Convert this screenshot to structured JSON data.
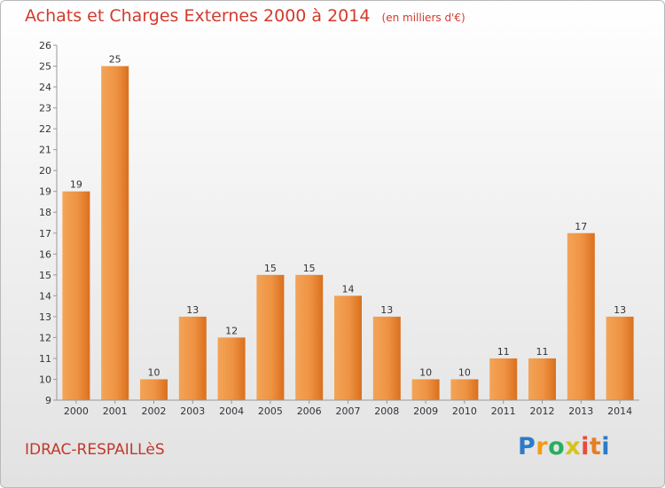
{
  "chart_data": {
    "type": "bar",
    "title": "Achats et Charges Externes 2000 à 2014",
    "unit_label": "(en milliers d'€)",
    "categories": [
      "2000",
      "2001",
      "2002",
      "2003",
      "2004",
      "2005",
      "2006",
      "2007",
      "2008",
      "2009",
      "2010",
      "2011",
      "2012",
      "2013",
      "2014"
    ],
    "values": [
      19,
      25,
      10,
      13,
      12,
      15,
      15,
      14,
      13,
      10,
      10,
      11,
      11,
      17,
      13
    ],
    "ylim": [
      9,
      26
    ],
    "yticks": [
      "9",
      "10",
      "11",
      "12",
      "13",
      "14",
      "15",
      "16",
      "17",
      "18",
      "19",
      "20",
      "21",
      "22",
      "23",
      "24",
      "25",
      "26"
    ],
    "grid": false,
    "bar_color": "#e8822f"
  },
  "commune": "IDRAC-RESPAILLèS",
  "brand": {
    "letters": [
      "P",
      "r",
      "o",
      "x",
      "i",
      "t",
      "i"
    ],
    "colors": [
      "#2b7bc8",
      "#f39c12",
      "#27ae60",
      "#d6c31c",
      "#e74c3c",
      "#e67e22",
      "#2b7bc8"
    ]
  }
}
